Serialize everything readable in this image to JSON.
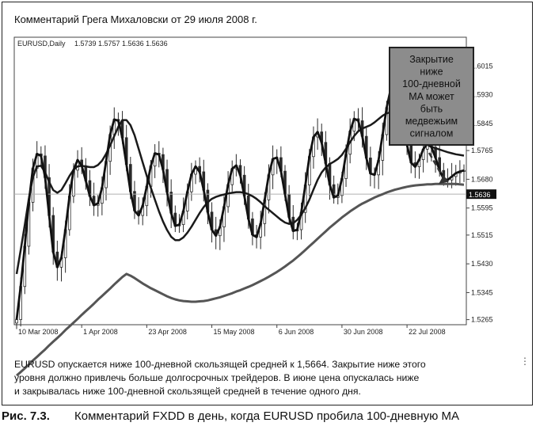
{
  "header": "Комментарий Грега Михаловски от 29 июля 2008 г.",
  "chart_data": {
    "type": "line",
    "symbol_label": "EURUSD,Daily",
    "ohlc_label": "1.5739 1.5757 1.5636 1.5636",
    "current_price": "1.5636",
    "ylim": [
      1.525,
      1.61
    ],
    "y_ticks": [
      "1.6015",
      "1.5930",
      "1.5845",
      "1.5765",
      "1.5680",
      "1.5595",
      "1.5515",
      "1.5430",
      "1.5345",
      "1.5265"
    ],
    "x_ticks": [
      {
        "label": "10 Mar 2008",
        "index": 0
      },
      {
        "label": "1 Apr 2008",
        "index": 16
      },
      {
        "label": "23 Apr 2008",
        "index": 32
      },
      {
        "label": "15 May 2008",
        "index": 48
      },
      {
        "label": "6 Jun 2008",
        "index": 64
      },
      {
        "label": "30 Jun 2008",
        "index": 80
      },
      {
        "label": "22 Jul 2008",
        "index": 96
      }
    ],
    "series": [
      {
        "values": [
          1.5265,
          1.5363,
          1.5482,
          1.5612,
          1.5712,
          1.5755,
          1.5749,
          1.5685,
          1.5573,
          1.5465,
          1.542,
          1.5448,
          1.5531,
          1.563,
          1.5707,
          1.5737,
          1.572,
          1.5676,
          1.563,
          1.5603,
          1.5609,
          1.5655,
          1.5733,
          1.5812,
          1.5857,
          1.5853,
          1.5803,
          1.5724,
          1.5644,
          1.5587,
          1.5573,
          1.5602,
          1.5659,
          1.5719,
          1.5757,
          1.5753,
          1.5709,
          1.5642,
          1.558,
          1.5542,
          1.5546,
          1.5586,
          1.5643,
          1.5695,
          1.5718,
          1.5702,
          1.5648,
          1.5583,
          1.5531,
          1.5513,
          1.5539,
          1.5599,
          1.5664,
          1.5711,
          1.5721,
          1.5692,
          1.5631,
          1.5563,
          1.5516,
          1.5509,
          1.5549,
          1.5619,
          1.5693,
          1.574,
          1.5744,
          1.5704,
          1.5636,
          1.5568,
          1.5527,
          1.5531,
          1.5582,
          1.5663,
          1.5747,
          1.5805,
          1.582,
          1.5789,
          1.5727,
          1.5664,
          1.5626,
          1.5632,
          1.5682,
          1.5754,
          1.5822,
          1.5859,
          1.5853,
          1.5807,
          1.5743,
          1.5697,
          1.5693,
          1.5736,
          1.5812,
          1.5892,
          1.5947,
          1.5961,
          1.5925,
          1.5855,
          1.5781,
          1.5729,
          1.5717,
          1.5738,
          1.5769,
          1.5785,
          1.5775,
          1.5744,
          1.5706,
          1.5681,
          1.5678,
          1.5688,
          1.5698,
          1.5703,
          1.5706
        ]
      }
    ],
    "moving_averages": [
      {
        "name": "fast",
        "values": [
          1.54,
          1.547,
          1.5545,
          1.5622,
          1.5685,
          1.5718,
          1.572,
          1.57,
          1.5672,
          1.5648,
          1.564,
          1.5648,
          1.5668,
          1.569,
          1.5708,
          1.5718,
          1.572,
          1.5718,
          1.5716,
          1.5716,
          1.5722,
          1.5735,
          1.5755,
          1.578,
          1.5808,
          1.5835,
          1.5855,
          1.5855,
          1.584,
          1.581,
          1.577,
          1.573,
          1.569,
          1.5655,
          1.562,
          1.5585,
          1.5555,
          1.553,
          1.551,
          1.55,
          1.55,
          1.5508,
          1.5522,
          1.554,
          1.556,
          1.558,
          1.5598,
          1.5612,
          1.5622,
          1.5628,
          1.5632,
          1.5635,
          1.5638,
          1.564,
          1.5642,
          1.5642,
          1.564,
          1.5636,
          1.563,
          1.5622,
          1.5612,
          1.56,
          1.559,
          1.558,
          1.557,
          1.556,
          1.5552,
          1.5548,
          1.555,
          1.556,
          1.5575,
          1.5595,
          1.562,
          1.565,
          1.5678,
          1.57,
          1.5715,
          1.5725,
          1.5732,
          1.574,
          1.5752,
          1.577,
          1.579,
          1.5808,
          1.5822,
          1.583,
          1.5835,
          1.584,
          1.5848,
          1.5858,
          1.5868,
          1.5875,
          1.5878,
          1.5876,
          1.587,
          1.586,
          1.5846,
          1.583,
          1.5814,
          1.58,
          1.579,
          1.5782,
          1.5776,
          1.5772,
          1.5768,
          1.5764,
          1.576,
          1.5757,
          1.5754,
          1.5752,
          1.575
        ]
      },
      {
        "name": "slow",
        "values": [
          1.51,
          1.511,
          1.5121,
          1.5132,
          1.5144,
          1.5155,
          1.5166,
          1.5177,
          1.5189,
          1.52,
          1.5211,
          1.5222,
          1.5234,
          1.5245,
          1.5256,
          1.5267,
          1.5279,
          1.529,
          1.5301,
          1.5312,
          1.5324,
          1.5335,
          1.5346,
          1.5357,
          1.5369,
          1.538,
          1.5391,
          1.54,
          1.5395,
          1.5388,
          1.538,
          1.5372,
          1.5365,
          1.5358,
          1.5352,
          1.5346,
          1.534,
          1.5334,
          1.5329,
          1.5325,
          1.5322,
          1.532,
          1.5319,
          1.5318,
          1.5318,
          1.5319,
          1.532,
          1.5322,
          1.5325,
          1.5328,
          1.5331,
          1.5335,
          1.5339,
          1.5343,
          1.5348,
          1.5352,
          1.5357,
          1.5362,
          1.5367,
          1.5373,
          1.5379,
          1.5385,
          1.5392,
          1.5399,
          1.5406,
          1.5414,
          1.5422,
          1.5431,
          1.544,
          1.545,
          1.546,
          1.5471,
          1.5482,
          1.5493,
          1.5504,
          1.5515,
          1.5526,
          1.5537,
          1.5547,
          1.5557,
          1.5567,
          1.5576,
          1.5585,
          1.5593,
          1.5601,
          1.5608,
          1.5614,
          1.562,
          1.5626,
          1.5631,
          1.5636,
          1.5641,
          1.5645,
          1.5649,
          1.5652,
          1.5655,
          1.5658,
          1.566,
          1.5662,
          1.5663,
          1.5664,
          1.5665,
          1.5665,
          1.5666,
          1.5666,
          1.5666,
          1.5666,
          1.5666,
          1.5666,
          1.5665,
          1.5664
        ]
      }
    ],
    "grid": false,
    "annotations": [
      {
        "text": "Закрытие ниже 100-дневной MA может быть медвежьим сигналом",
        "lines": [
          "Закрытие",
          "ниже",
          "100-дневной",
          "MA может",
          "быть",
          "медвежьим",
          "сигналом"
        ],
        "placement": "top-right",
        "arrow_to_index": 103
      }
    ]
  },
  "description": "EURUSD опускается ниже 100-дневной скользящей средней к 1,5664. Закрытие ниже этого уровня должно привлечь больше долгосрочных трейдеров. В июне цена опускалась ниже и закрывалась ниже 100-дневной скользящей средней в течение одного дня.",
  "description_lines": [
    "EURUSD опускается ниже 100-дневной скользящей средней к 1,5664. Закрытие ниже этого",
    "уровня должно привлечь больше долгосрочных трейдеров. В июне цена опускалась ниже",
    "и закрывалась ниже 100-дневной скользящей средней в течение одного дня."
  ],
  "caption": {
    "label": "Рис. 7.3.",
    "text": "Комментарий FXDD в день, когда EURUSD пробила 100-дневную MA"
  },
  "colors": {
    "background": "#ffffff",
    "candle": "#2a2a2a",
    "price_line": "#111111",
    "fast_ma": "#1a1a1a",
    "slow_ma": "#555555",
    "current_line": "#b0b0b0",
    "callout_bg": "#8c8c8c",
    "callout_border": "#222222"
  }
}
